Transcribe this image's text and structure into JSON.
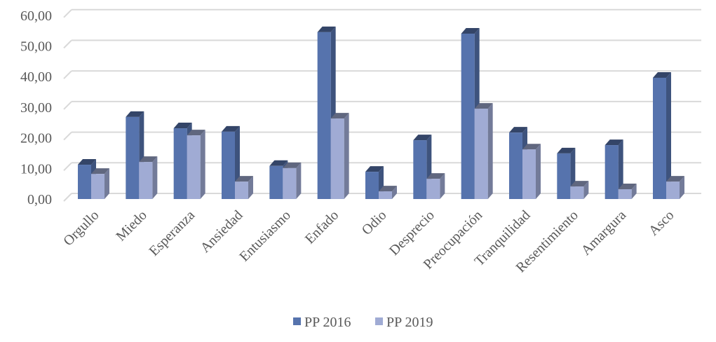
{
  "chart_data": {
    "type": "bar",
    "title": "",
    "xlabel": "",
    "ylabel": "",
    "ylim": [
      0,
      60
    ],
    "yticks": [
      "0,00",
      "10,00",
      "20,00",
      "30,00",
      "40,00",
      "50,00",
      "60,00"
    ],
    "grid": true,
    "legend_position": "bottom",
    "categories": [
      "Orgullo",
      "Miedo",
      "Esperanza",
      "Ansiedad",
      "Entusiasmo",
      "Enfado",
      "Odio",
      "Desprecio",
      "Preocupación",
      "Tranquilidad",
      "Resentimiento",
      "Amargura",
      "Asco"
    ],
    "series": [
      {
        "name": "PP 2016",
        "color": "#5673ad",
        "values": [
          11.2,
          26.8,
          23.1,
          22.0,
          10.8,
          54.5,
          8.9,
          19.2,
          54.0,
          21.7,
          14.9,
          17.6,
          39.6
        ]
      },
      {
        "name": "PP 2019",
        "color": "#a0abd4",
        "values": [
          8.2,
          12.1,
          20.8,
          5.7,
          10.1,
          26.3,
          2.5,
          6.6,
          29.5,
          16.2,
          4.1,
          3.2,
          5.7
        ]
      }
    ]
  }
}
